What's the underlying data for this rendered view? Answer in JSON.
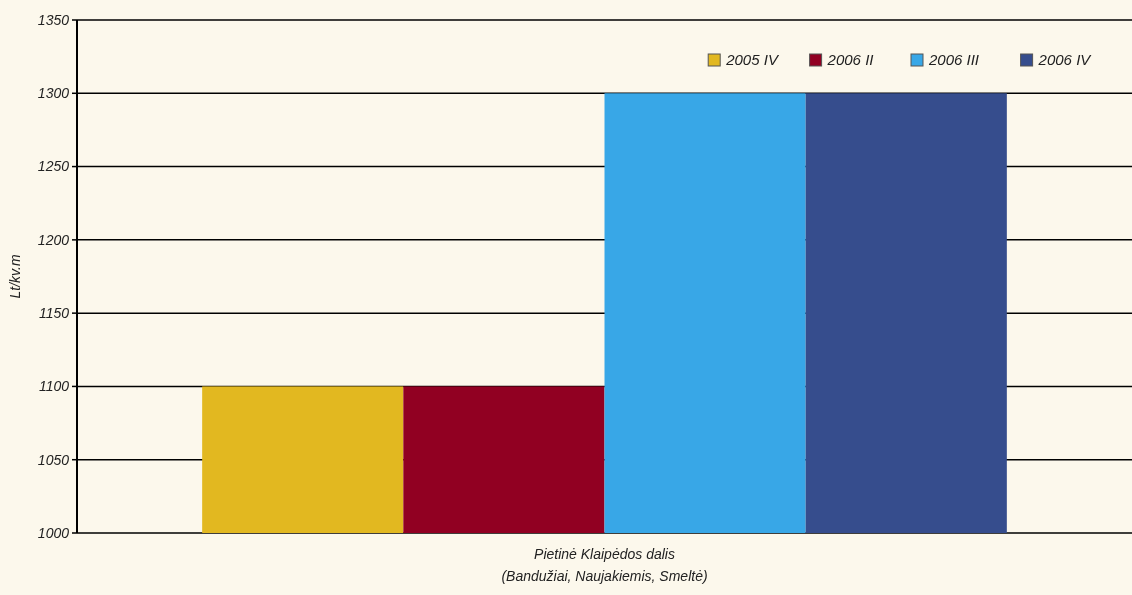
{
  "chart_data": {
    "type": "bar",
    "ylabel": "Lt/kv.m",
    "categories": [
      "Pietinė Klaipėdos dalis\n(Bandužiai, Naujakiemis, Smeltė)"
    ],
    "series": [
      {
        "name": "2005 IV",
        "color": "#e2b820",
        "values": [
          1100
        ]
      },
      {
        "name": "2006 II",
        "color": "#910022",
        "values": [
          1100
        ]
      },
      {
        "name": "2006 III",
        "color": "#38a7e7",
        "values": [
          1300
        ]
      },
      {
        "name": "2006 IV",
        "color": "#364d8d",
        "values": [
          1300
        ]
      }
    ],
    "ylim": [
      1000,
      1350
    ],
    "yticks": [
      1000,
      1050,
      1100,
      1150,
      1200,
      1250,
      1300,
      1350
    ],
    "grid": "y",
    "legend": "top right"
  }
}
